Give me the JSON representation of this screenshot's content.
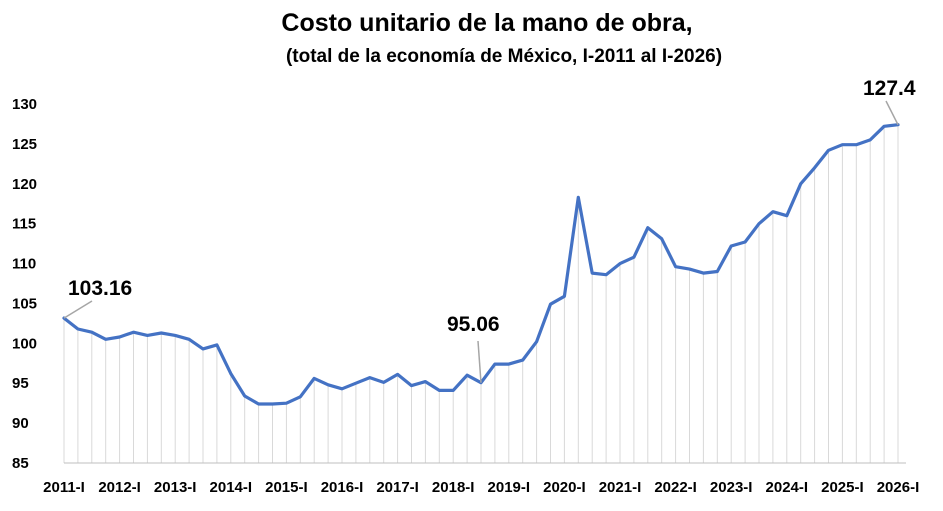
{
  "chart_data": {
    "type": "line",
    "title": "Costo unitario de la mano de obra,",
    "subtitle": "(total de la economía de México, I-2011 al I-2026)",
    "xlabel": "",
    "ylabel": "",
    "ylim": [
      85,
      130
    ],
    "yticks": [
      85,
      90,
      95,
      100,
      105,
      110,
      115,
      120,
      125,
      130
    ],
    "xtick_labels": [
      "2011-I",
      "2012-I",
      "2013-I",
      "2014-I",
      "2015-I",
      "2016-I",
      "2017-I",
      "2018-I",
      "2019-I",
      "2020-I",
      "2021-I",
      "2022-I",
      "2023-I",
      "2024-I",
      "2025-I",
      "2026-I"
    ],
    "grid": "vertical drop lines at each quarter",
    "line_color": "#4472C4",
    "grid_color": "#d9d9d9",
    "series": [
      {
        "values": [
          103.16,
          101.8,
          101.4,
          100.5,
          100.8,
          101.4,
          101.0,
          101.3,
          101.0,
          100.5,
          99.3,
          99.8,
          96.2,
          93.4,
          92.4,
          92.4,
          92.5,
          93.3,
          95.6,
          94.8,
          94.3,
          95.0,
          95.7,
          95.1,
          96.1,
          94.7,
          95.2,
          94.1,
          94.1,
          96.0,
          95.06,
          97.4,
          97.4,
          97.9,
          100.2,
          104.9,
          105.9,
          118.3,
          108.8,
          108.6,
          110.0,
          110.8,
          114.5,
          113.1,
          109.6,
          109.3,
          108.8,
          109.0,
          112.2,
          112.7,
          115.0,
          116.5,
          116.0,
          120.0,
          122.0,
          124.2,
          124.9,
          124.9,
          125.5,
          127.2,
          127.4
        ]
      }
    ],
    "annotations": [
      {
        "text": "103.16",
        "index": 0
      },
      {
        "text": "95.06",
        "index": 30
      },
      {
        "text": "127.4",
        "index": 60
      }
    ]
  }
}
